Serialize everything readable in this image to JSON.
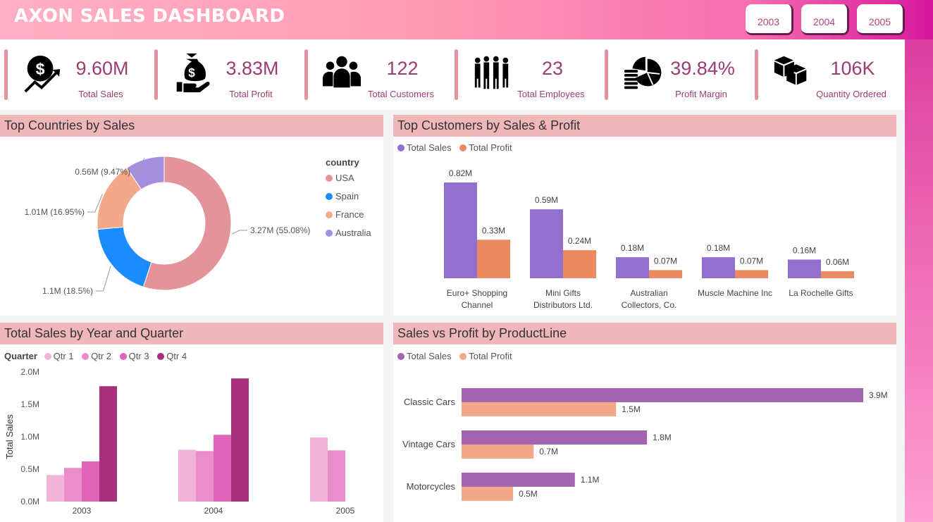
{
  "header": {
    "title": "AXON SALES DASHBOARD",
    "year_buttons": [
      "2003",
      "2004",
      "2005"
    ]
  },
  "kpis": [
    {
      "icon": "dollar-growth-icon",
      "value": "9.60M",
      "label": "Total Sales"
    },
    {
      "icon": "money-bag-hand-icon",
      "value": "3.83M",
      "label": "Total Profit"
    },
    {
      "icon": "customers-group-icon",
      "value": "122",
      "label": "Total Customers"
    },
    {
      "icon": "employees-group-icon",
      "value": "23",
      "label": "Total Employees"
    },
    {
      "icon": "pie-coins-icon",
      "value": "39.84%",
      "label": "Profit Margin"
    },
    {
      "icon": "boxes-icon",
      "value": "106K",
      "label": "Quantity Ordered"
    }
  ],
  "colors": {
    "accent": "#9c3d71",
    "panel_header": "#f0b7bb",
    "usa": "#e3939a",
    "spain": "#1a8cff",
    "france": "#f2a98a",
    "australia": "#a48fde",
    "cust_sales": "#9170cf",
    "cust_profit": "#ea8a5e",
    "qtr1": "#f2b3d9",
    "qtr2": "#ea8dcb",
    "qtr3": "#e064b8",
    "qtr4": "#a6307c",
    "pl_sales": "#a564b0",
    "pl_profit": "#f2a98a"
  },
  "chart_data": [
    {
      "id": "countries",
      "type": "pie",
      "title": "Top Countries by Sales",
      "legend_title": "country",
      "legend_position": "right",
      "categories": [
        "USA",
        "Spain",
        "France",
        "Australia"
      ],
      "values": [
        3.27,
        1.1,
        1.01,
        0.56
      ],
      "labels": [
        "3.27M (55.08%)",
        "1.1M (18.5%)",
        "1.01M (16.95%)",
        "0.56M (9.47%)"
      ]
    },
    {
      "id": "customers",
      "type": "bar",
      "title": "Top Customers by Sales & Profit",
      "legend_position": "top-left",
      "categories": [
        "Euro+ Shopping Channel",
        "Mini Gifts Distributors Ltd.",
        "Australian Collectors, Co.",
        "Muscle Machine Inc",
        "La Rochelle Gifts"
      ],
      "category_lines": [
        [
          "Euro+ Shopping",
          "Channel"
        ],
        [
          "Mini Gifts",
          "Distributors Ltd."
        ],
        [
          "Australian",
          "Collectors, Co."
        ],
        [
          "Muscle Machine Inc"
        ],
        [
          "La Rochelle Gifts"
        ]
      ],
      "series": [
        {
          "name": "Total Sales",
          "values": [
            0.82,
            0.59,
            0.18,
            0.18,
            0.16
          ],
          "labels": [
            "0.82M",
            "0.59M",
            "0.18M",
            "0.18M",
            "0.16M"
          ]
        },
        {
          "name": "Total Profit",
          "values": [
            0.33,
            0.24,
            0.07,
            0.07,
            0.06
          ],
          "labels": [
            "0.33M",
            "0.24M",
            "0.07M",
            "0.07M",
            "0.06M"
          ]
        }
      ]
    },
    {
      "id": "quarters",
      "type": "bar",
      "title": "Total Sales by Year and Quarter",
      "legend_title": "Quarter",
      "legend_position": "top-left",
      "ylabel": "Total Sales",
      "ylim": [
        0,
        2.0
      ],
      "yticks": [
        "0.0M",
        "0.5M",
        "1.0M",
        "1.5M",
        "2.0M"
      ],
      "categories": [
        "2003",
        "2004",
        "2005"
      ],
      "series": [
        {
          "name": "Qtr 1",
          "values": [
            0.41,
            0.8,
            0.99
          ]
        },
        {
          "name": "Qtr 2",
          "values": [
            0.52,
            0.78,
            0.79
          ]
        },
        {
          "name": "Qtr 3",
          "values": [
            0.62,
            1.03,
            null
          ]
        },
        {
          "name": "Qtr 4",
          "values": [
            1.78,
            1.9,
            null
          ]
        }
      ]
    },
    {
      "id": "productline",
      "type": "bar",
      "orientation": "horizontal",
      "title": "Sales vs Profit by ProductLine",
      "legend_position": "top-left",
      "categories": [
        "Classic Cars",
        "Vintage Cars",
        "Motorcycles"
      ],
      "series": [
        {
          "name": "Total Sales",
          "values": [
            3.9,
            1.8,
            1.1
          ],
          "labels": [
            "3.9M",
            "1.8M",
            "1.1M"
          ]
        },
        {
          "name": "Total Profit",
          "values": [
            1.5,
            0.7,
            0.5
          ],
          "labels": [
            "1.5M",
            "0.7M",
            "0.5M"
          ]
        }
      ]
    }
  ]
}
